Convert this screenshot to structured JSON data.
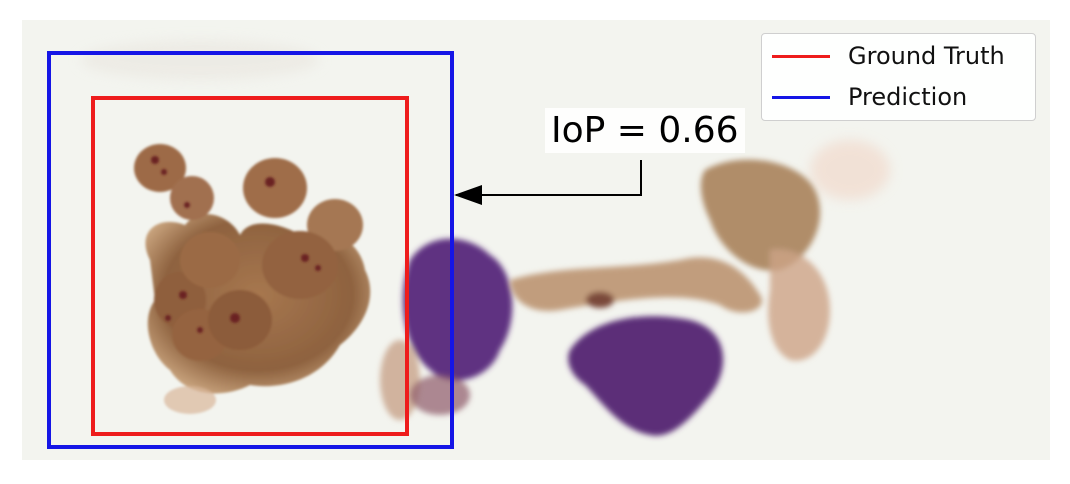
{
  "legend": {
    "items": [
      {
        "label": "Ground Truth",
        "color": "#ee1c1c"
      },
      {
        "label": "Prediction",
        "color": "#1515e6"
      }
    ]
  },
  "annotation": {
    "text": "IoP = 0.66"
  },
  "colors": {
    "ground_truth": "#ee1c1c",
    "prediction": "#1515e6",
    "background": "#f3f4ef",
    "cell_brown": "#9a6a45",
    "nucleus": "#6a2a2a",
    "purple_stain": "#5b2f7a"
  }
}
